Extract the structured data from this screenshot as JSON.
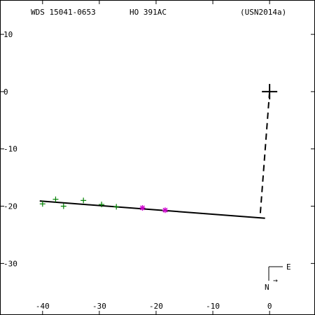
{
  "header": {
    "wds": "WDS 15041-0653",
    "discoverer": "HO  391AC",
    "reference": "(USN2014a)"
  },
  "compass": {
    "east": "E",
    "north": "N",
    "arrow": "→"
  },
  "chart_data": {
    "type": "scatter",
    "title": "",
    "xlabel": "",
    "ylabel": "",
    "xlim": [
      -47.5,
      8
    ],
    "ylim": [
      -39,
      16
    ],
    "x_ticks": [
      -40,
      -30,
      -20,
      -10,
      0
    ],
    "y_ticks": [
      10,
      0,
      -10,
      -20,
      -30
    ],
    "x_tick_labels": [
      "-40",
      "-30",
      "-20",
      "-10",
      "0"
    ],
    "y_tick_labels": [
      "10",
      "0",
      "-10",
      "-20",
      "-30"
    ],
    "primary": {
      "x": 0,
      "y": 0,
      "marker": "cross"
    },
    "orbit_line": {
      "x": [
        -40.5,
        -0.8
      ],
      "y": [
        -19.1,
        -22.1
      ],
      "color": "#000000"
    },
    "dashed_connector": {
      "x": [
        0,
        -1.7
      ],
      "y": [
        0,
        -22.1
      ],
      "color": "#000000"
    },
    "series": [
      {
        "marker": "plus",
        "color": "#008000",
        "points": [
          {
            "x": -40.0,
            "y": -19.6
          },
          {
            "x": -37.7,
            "y": -18.8
          },
          {
            "x": -36.3,
            "y": -20.0
          },
          {
            "x": -32.8,
            "y": -19.0
          },
          {
            "x": -29.6,
            "y": -19.7
          },
          {
            "x": -27.0,
            "y": -20.1
          }
        ]
      },
      {
        "marker": "asterisk",
        "color": "#cc00cc",
        "points": [
          {
            "x": -22.4,
            "y": -20.3
          },
          {
            "x": -18.4,
            "y": -20.7
          }
        ]
      }
    ]
  }
}
